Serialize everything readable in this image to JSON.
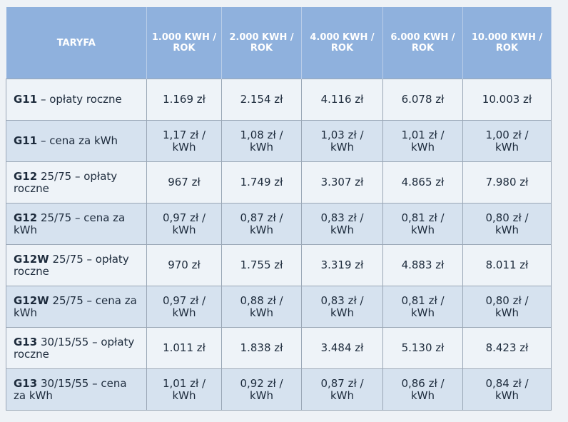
{
  "table": {
    "header": [
      "TARYFA",
      "1.000 KWH / ROK",
      "2.000 KWH / ROK",
      "4.000 KWH / ROK",
      "6.000 KWH / ROK",
      "10.000 KWH / ROK"
    ],
    "rows": [
      [
        {
          "code": "G11",
          "label": "– opłaty roczne"
        },
        "1.169 zł",
        "2.154 zł",
        "4.116 zł",
        "6.078 zł",
        "10.003 zł"
      ],
      [
        {
          "code": "G11",
          "label": "– cena za kWh"
        },
        "1,17 zł / kWh",
        "1,08 zł / kWh",
        "1,03 zł / kWh",
        "1,01 zł / kWh",
        "1,00 zł / kWh"
      ],
      [
        {
          "code": "G12",
          "label": "25/75 – opłaty roczne"
        },
        "967 zł",
        "1.749 zł",
        "3.307 zł",
        "4.865 zł",
        "7.980 zł"
      ],
      [
        {
          "code": "G12",
          "label": "25/75 – cena za kWh"
        },
        "0,97 zł / kWh",
        "0,87 zł / kWh",
        "0,83 zł / kWh",
        "0,81 zł / kWh",
        "0,80 zł / kWh"
      ],
      [
        {
          "code": "G12W",
          "label": "25/75 – opłaty roczne"
        },
        "970 zł",
        "1.755 zł",
        "3.319 zł",
        "4.883 zł",
        "8.011 zł"
      ],
      [
        {
          "code": "G12W",
          "label": "25/75 – cena za kWh"
        },
        "0,97 zł / kWh",
        "0,88 zł / kWh",
        "0,83 zł / kWh",
        "0,81 zł / kWh",
        "0,80 zł / kWh"
      ],
      [
        {
          "code": "G13",
          "label": "30/15/55 – opłaty roczne"
        },
        "1.011 zł",
        "1.838 zł",
        "3.484 zł",
        "5.130 zł",
        "8.423 zł"
      ],
      [
        {
          "code": "G13",
          "label": "30/15/55 – cena za kWh"
        },
        "1,01 zł / kWh",
        "0,92 zł / kWh",
        "0,87 zł / kWh",
        "0,86 zł / kWh",
        "0,84 zł / kWh"
      ]
    ]
  }
}
